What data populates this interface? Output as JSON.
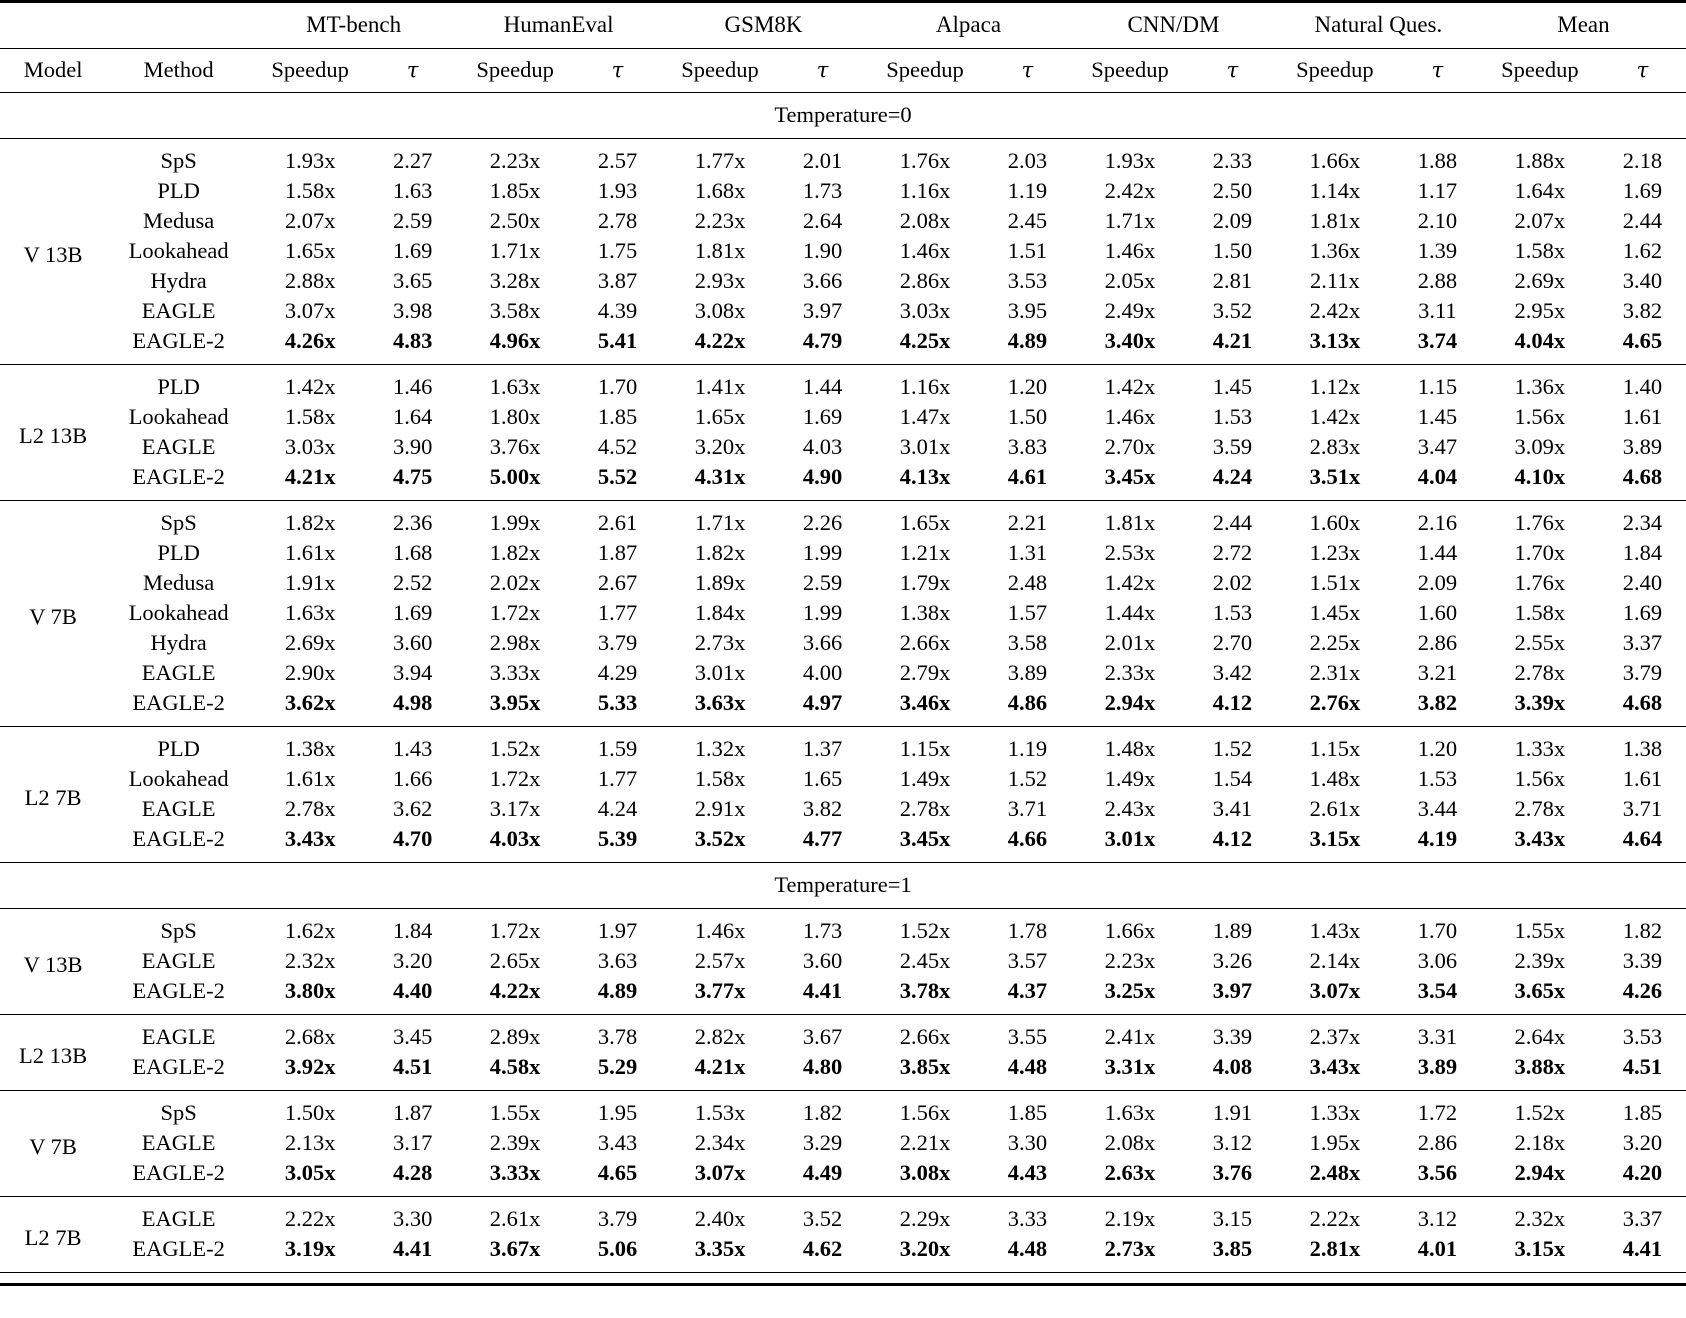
{
  "table": {
    "col_headers": {
      "model": "Model",
      "method": "Method",
      "speedup": "Speedup",
      "tau": "τ"
    },
    "benchmarks": [
      "MT-bench",
      "HumanEval",
      "GSM8K",
      "Alpaca",
      "CNN/DM",
      "Natural Ques.",
      "Mean"
    ],
    "sections": [
      {
        "title": "Temperature=0",
        "groups": [
          {
            "model": "V 13B",
            "rows": [
              {
                "method": "SpS",
                "bold": false,
                "values": [
                  "1.93x",
                  "2.27",
                  "2.23x",
                  "2.57",
                  "1.77x",
                  "2.01",
                  "1.76x",
                  "2.03",
                  "1.93x",
                  "2.33",
                  "1.66x",
                  "1.88",
                  "1.88x",
                  "2.18"
                ]
              },
              {
                "method": "PLD",
                "bold": false,
                "values": [
                  "1.58x",
                  "1.63",
                  "1.85x",
                  "1.93",
                  "1.68x",
                  "1.73",
                  "1.16x",
                  "1.19",
                  "2.42x",
                  "2.50",
                  "1.14x",
                  "1.17",
                  "1.64x",
                  "1.69"
                ]
              },
              {
                "method": "Medusa",
                "bold": false,
                "values": [
                  "2.07x",
                  "2.59",
                  "2.50x",
                  "2.78",
                  "2.23x",
                  "2.64",
                  "2.08x",
                  "2.45",
                  "1.71x",
                  "2.09",
                  "1.81x",
                  "2.10",
                  "2.07x",
                  "2.44"
                ]
              },
              {
                "method": "Lookahead",
                "bold": false,
                "values": [
                  "1.65x",
                  "1.69",
                  "1.71x",
                  "1.75",
                  "1.81x",
                  "1.90",
                  "1.46x",
                  "1.51",
                  "1.46x",
                  "1.50",
                  "1.36x",
                  "1.39",
                  "1.58x",
                  "1.62"
                ]
              },
              {
                "method": "Hydra",
                "bold": false,
                "values": [
                  "2.88x",
                  "3.65",
                  "3.28x",
                  "3.87",
                  "2.93x",
                  "3.66",
                  "2.86x",
                  "3.53",
                  "2.05x",
                  "2.81",
                  "2.11x",
                  "2.88",
                  "2.69x",
                  "3.40"
                ]
              },
              {
                "method": "EAGLE",
                "bold": false,
                "values": [
                  "3.07x",
                  "3.98",
                  "3.58x",
                  "4.39",
                  "3.08x",
                  "3.97",
                  "3.03x",
                  "3.95",
                  "2.49x",
                  "3.52",
                  "2.42x",
                  "3.11",
                  "2.95x",
                  "3.82"
                ]
              },
              {
                "method": "EAGLE-2",
                "bold": true,
                "values": [
                  "4.26x",
                  "4.83",
                  "4.96x",
                  "5.41",
                  "4.22x",
                  "4.79",
                  "4.25x",
                  "4.89",
                  "3.40x",
                  "4.21",
                  "3.13x",
                  "3.74",
                  "4.04x",
                  "4.65"
                ]
              }
            ]
          },
          {
            "model": "L2 13B",
            "rows": [
              {
                "method": "PLD",
                "bold": false,
                "values": [
                  "1.42x",
                  "1.46",
                  "1.63x",
                  "1.70",
                  "1.41x",
                  "1.44",
                  "1.16x",
                  "1.20",
                  "1.42x",
                  "1.45",
                  "1.12x",
                  "1.15",
                  "1.36x",
                  "1.40"
                ]
              },
              {
                "method": "Lookahead",
                "bold": false,
                "values": [
                  "1.58x",
                  "1.64",
                  "1.80x",
                  "1.85",
                  "1.65x",
                  "1.69",
                  "1.47x",
                  "1.50",
                  "1.46x",
                  "1.53",
                  "1.42x",
                  "1.45",
                  "1.56x",
                  "1.61"
                ]
              },
              {
                "method": "EAGLE",
                "bold": false,
                "values": [
                  "3.03x",
                  "3.90",
                  "3.76x",
                  "4.52",
                  "3.20x",
                  "4.03",
                  "3.01x",
                  "3.83",
                  "2.70x",
                  "3.59",
                  "2.83x",
                  "3.47",
                  "3.09x",
                  "3.89"
                ]
              },
              {
                "method": "EAGLE-2",
                "bold": true,
                "values": [
                  "4.21x",
                  "4.75",
                  "5.00x",
                  "5.52",
                  "4.31x",
                  "4.90",
                  "4.13x",
                  "4.61",
                  "3.45x",
                  "4.24",
                  "3.51x",
                  "4.04",
                  "4.10x",
                  "4.68"
                ]
              }
            ]
          },
          {
            "model": "V 7B",
            "rows": [
              {
                "method": "SpS",
                "bold": false,
                "values": [
                  "1.82x",
                  "2.36",
                  "1.99x",
                  "2.61",
                  "1.71x",
                  "2.26",
                  "1.65x",
                  "2.21",
                  "1.81x",
                  "2.44",
                  "1.60x",
                  "2.16",
                  "1.76x",
                  "2.34"
                ]
              },
              {
                "method": "PLD",
                "bold": false,
                "values": [
                  "1.61x",
                  "1.68",
                  "1.82x",
                  "1.87",
                  "1.82x",
                  "1.99",
                  "1.21x",
                  "1.31",
                  "2.53x",
                  "2.72",
                  "1.23x",
                  "1.44",
                  "1.70x",
                  "1.84"
                ]
              },
              {
                "method": "Medusa",
                "bold": false,
                "values": [
                  "1.91x",
                  "2.52",
                  "2.02x",
                  "2.67",
                  "1.89x",
                  "2.59",
                  "1.79x",
                  "2.48",
                  "1.42x",
                  "2.02",
                  "1.51x",
                  "2.09",
                  "1.76x",
                  "2.40"
                ]
              },
              {
                "method": "Lookahead",
                "bold": false,
                "values": [
                  "1.63x",
                  "1.69",
                  "1.72x",
                  "1.77",
                  "1.84x",
                  "1.99",
                  "1.38x",
                  "1.57",
                  "1.44x",
                  "1.53",
                  "1.45x",
                  "1.60",
                  "1.58x",
                  "1.69"
                ]
              },
              {
                "method": "Hydra",
                "bold": false,
                "values": [
                  "2.69x",
                  "3.60",
                  "2.98x",
                  "3.79",
                  "2.73x",
                  "3.66",
                  "2.66x",
                  "3.58",
                  "2.01x",
                  "2.70",
                  "2.25x",
                  "2.86",
                  "2.55x",
                  "3.37"
                ]
              },
              {
                "method": "EAGLE",
                "bold": false,
                "values": [
                  "2.90x",
                  "3.94",
                  "3.33x",
                  "4.29",
                  "3.01x",
                  "4.00",
                  "2.79x",
                  "3.89",
                  "2.33x",
                  "3.42",
                  "2.31x",
                  "3.21",
                  "2.78x",
                  "3.79"
                ]
              },
              {
                "method": "EAGLE-2",
                "bold": true,
                "values": [
                  "3.62x",
                  "4.98",
                  "3.95x",
                  "5.33",
                  "3.63x",
                  "4.97",
                  "3.46x",
                  "4.86",
                  "2.94x",
                  "4.12",
                  "2.76x",
                  "3.82",
                  "3.39x",
                  "4.68"
                ]
              }
            ]
          },
          {
            "model": "L2 7B",
            "rows": [
              {
                "method": "PLD",
                "bold": false,
                "values": [
                  "1.38x",
                  "1.43",
                  "1.52x",
                  "1.59",
                  "1.32x",
                  "1.37",
                  "1.15x",
                  "1.19",
                  "1.48x",
                  "1.52",
                  "1.15x",
                  "1.20",
                  "1.33x",
                  "1.38"
                ]
              },
              {
                "method": "Lookahead",
                "bold": false,
                "values": [
                  "1.61x",
                  "1.66",
                  "1.72x",
                  "1.77",
                  "1.58x",
                  "1.65",
                  "1.49x",
                  "1.52",
                  "1.49x",
                  "1.54",
                  "1.48x",
                  "1.53",
                  "1.56x",
                  "1.61"
                ]
              },
              {
                "method": "EAGLE",
                "bold": false,
                "values": [
                  "2.78x",
                  "3.62",
                  "3.17x",
                  "4.24",
                  "2.91x",
                  "3.82",
                  "2.78x",
                  "3.71",
                  "2.43x",
                  "3.41",
                  "2.61x",
                  "3.44",
                  "2.78x",
                  "3.71"
                ]
              },
              {
                "method": "EAGLE-2",
                "bold": true,
                "values": [
                  "3.43x",
                  "4.70",
                  "4.03x",
                  "5.39",
                  "3.52x",
                  "4.77",
                  "3.45x",
                  "4.66",
                  "3.01x",
                  "4.12",
                  "3.15x",
                  "4.19",
                  "3.43x",
                  "4.64"
                ]
              }
            ]
          }
        ]
      },
      {
        "title": "Temperature=1",
        "groups": [
          {
            "model": "V 13B",
            "rows": [
              {
                "method": "SpS",
                "bold": false,
                "values": [
                  "1.62x",
                  "1.84",
                  "1.72x",
                  "1.97",
                  "1.46x",
                  "1.73",
                  "1.52x",
                  "1.78",
                  "1.66x",
                  "1.89",
                  "1.43x",
                  "1.70",
                  "1.55x",
                  "1.82"
                ]
              },
              {
                "method": "EAGLE",
                "bold": false,
                "values": [
                  "2.32x",
                  "3.20",
                  "2.65x",
                  "3.63",
                  "2.57x",
                  "3.60",
                  "2.45x",
                  "3.57",
                  "2.23x",
                  "3.26",
                  "2.14x",
                  "3.06",
                  "2.39x",
                  "3.39"
                ]
              },
              {
                "method": "EAGLE-2",
                "bold": true,
                "values": [
                  "3.80x",
                  "4.40",
                  "4.22x",
                  "4.89",
                  "3.77x",
                  "4.41",
                  "3.78x",
                  "4.37",
                  "3.25x",
                  "3.97",
                  "3.07x",
                  "3.54",
                  "3.65x",
                  "4.26"
                ]
              }
            ]
          },
          {
            "model": "L2 13B",
            "rows": [
              {
                "method": "EAGLE",
                "bold": false,
                "values": [
                  "2.68x",
                  "3.45",
                  "2.89x",
                  "3.78",
                  "2.82x",
                  "3.67",
                  "2.66x",
                  "3.55",
                  "2.41x",
                  "3.39",
                  "2.37x",
                  "3.31",
                  "2.64x",
                  "3.53"
                ]
              },
              {
                "method": "EAGLE-2",
                "bold": true,
                "values": [
                  "3.92x",
                  "4.51",
                  "4.58x",
                  "5.29",
                  "4.21x",
                  "4.80",
                  "3.85x",
                  "4.48",
                  "3.31x",
                  "4.08",
                  "3.43x",
                  "3.89",
                  "3.88x",
                  "4.51"
                ]
              }
            ]
          },
          {
            "model": "V 7B",
            "rows": [
              {
                "method": "SpS",
                "bold": false,
                "values": [
                  "1.50x",
                  "1.87",
                  "1.55x",
                  "1.95",
                  "1.53x",
                  "1.82",
                  "1.56x",
                  "1.85",
                  "1.63x",
                  "1.91",
                  "1.33x",
                  "1.72",
                  "1.52x",
                  "1.85"
                ]
              },
              {
                "method": "EAGLE",
                "bold": false,
                "values": [
                  "2.13x",
                  "3.17",
                  "2.39x",
                  "3.43",
                  "2.34x",
                  "3.29",
                  "2.21x",
                  "3.30",
                  "2.08x",
                  "3.12",
                  "1.95x",
                  "2.86",
                  "2.18x",
                  "3.20"
                ]
              },
              {
                "method": "EAGLE-2",
                "bold": true,
                "values": [
                  "3.05x",
                  "4.28",
                  "3.33x",
                  "4.65",
                  "3.07x",
                  "4.49",
                  "3.08x",
                  "4.43",
                  "2.63x",
                  "3.76",
                  "2.48x",
                  "3.56",
                  "2.94x",
                  "4.20"
                ]
              }
            ]
          },
          {
            "model": "L2 7B",
            "rows": [
              {
                "method": "EAGLE",
                "bold": false,
                "values": [
                  "2.22x",
                  "3.30",
                  "2.61x",
                  "3.79",
                  "2.40x",
                  "3.52",
                  "2.29x",
                  "3.33",
                  "2.19x",
                  "3.15",
                  "2.22x",
                  "3.12",
                  "2.32x",
                  "3.37"
                ]
              },
              {
                "method": "EAGLE-2",
                "bold": true,
                "values": [
                  "3.19x",
                  "4.41",
                  "3.67x",
                  "5.06",
                  "3.35x",
                  "4.62",
                  "3.20x",
                  "4.48",
                  "2.73x",
                  "3.85",
                  "2.81x",
                  "4.01",
                  "3.15x",
                  "4.41"
                ]
              }
            ]
          }
        ]
      }
    ],
    "layout": {
      "col_width_model_pct": 6.3,
      "col_width_method_pct": 8.6,
      "col_width_speedup_pct": 7.0,
      "col_width_tau_pct": 5.16
    }
  }
}
